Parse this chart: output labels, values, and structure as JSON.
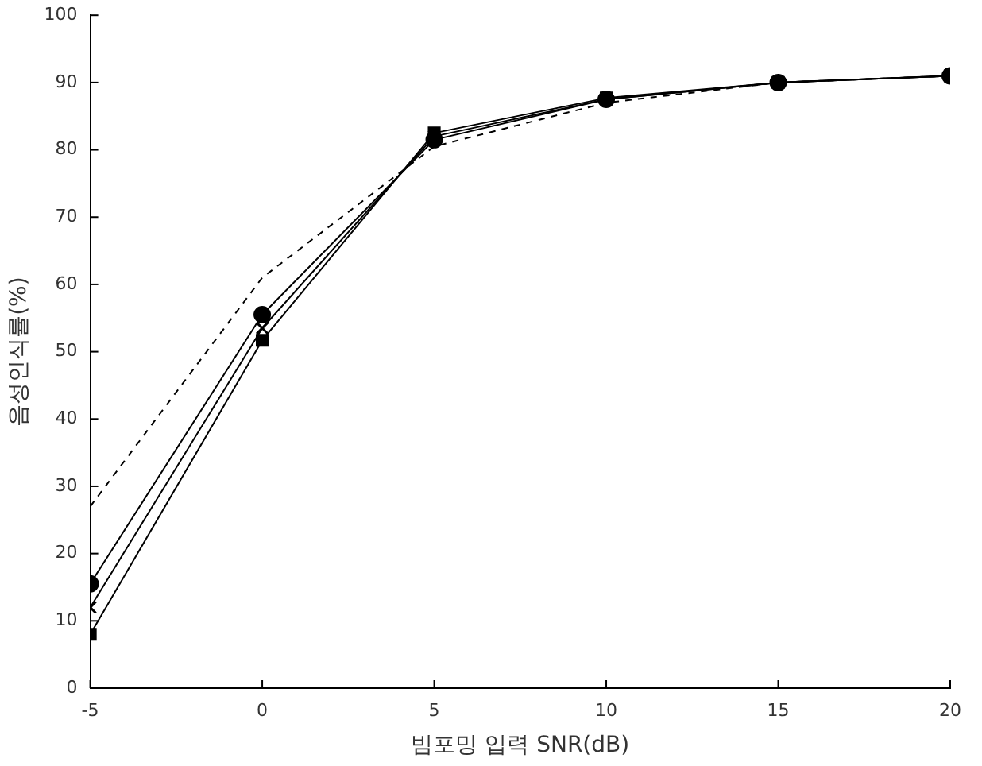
{
  "chart_data": {
    "type": "line",
    "xlabel": "빔포밍 입력 SNR(dB)",
    "ylabel": "음성인식률(%)",
    "x": [
      -5,
      0,
      5,
      10,
      15,
      20
    ],
    "xlim": [
      -5,
      20
    ],
    "xticks": [
      -5,
      0,
      5,
      10,
      15,
      20
    ],
    "ylim": [
      0,
      100
    ],
    "yticks": [
      0,
      10,
      20,
      30,
      40,
      50,
      60,
      70,
      80,
      90,
      100
    ],
    "grid": false,
    "legend": false,
    "series": [
      {
        "color": "#000000",
        "values": [
          27,
          61,
          80.5,
          87,
          90,
          91
        ],
        "marker": "none",
        "line_style": "dashed"
      },
      {
        "color": "#000000",
        "values": [
          15.5,
          55.5,
          81.5,
          87.5,
          90,
          91
        ],
        "marker": "circle",
        "line_style": "solid"
      },
      {
        "color": "#000000",
        "values": [
          12,
          53.5,
          82,
          87.5,
          90,
          91
        ],
        "marker": "cross",
        "line_style": "solid"
      },
      {
        "color": "#000000",
        "values": [
          8,
          51.7,
          82.5,
          87.7,
          90,
          91
        ],
        "marker": "square",
        "line_style": "solid"
      }
    ]
  }
}
